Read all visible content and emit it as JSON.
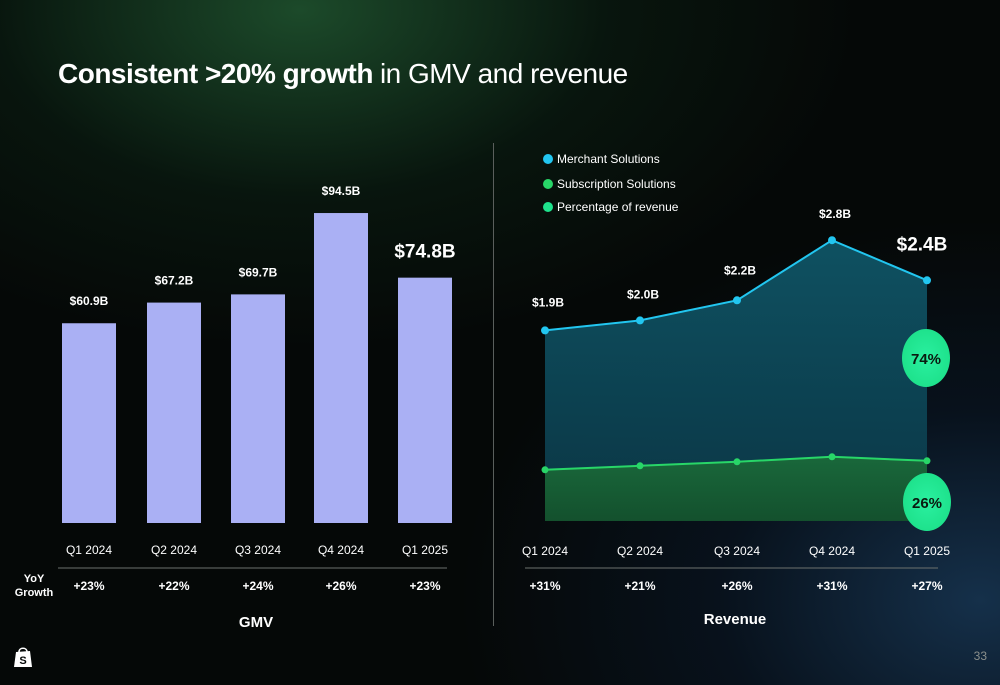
{
  "slide": {
    "title_bold": "Consistent >20% growth",
    "title_rest": "in GMV and revenue",
    "page_number": "33",
    "yoy_label_line1": "YoY",
    "yoy_label_line2": "Growth",
    "colors": {
      "gmv_bar": "#aab0f4",
      "merchant_line": "#22c6f0",
      "subscription_line": "#28d668",
      "merchant_area": "#0f5566",
      "subscription_area": "#1a6a3a",
      "pct_badge": "#1ee28c"
    },
    "logo_icon": "shopify-bag-icon"
  },
  "chart_data": [
    {
      "type": "bar",
      "xlabel": "GMV",
      "categories": [
        "Q1 2024",
        "Q2 2024",
        "Q3 2024",
        "Q4 2024",
        "Q1 2025"
      ],
      "values": [
        60.9,
        67.2,
        69.7,
        94.5,
        74.8
      ],
      "value_labels": [
        "$60.9B",
        "$67.2B",
        "$69.7B",
        "$94.5B",
        "$74.8B"
      ],
      "yoy_growth": [
        "+23%",
        "+22%",
        "+24%",
        "+26%",
        "+23%"
      ],
      "ylim": [
        0,
        100
      ],
      "grid": false,
      "legend": "none"
    },
    {
      "type": "area",
      "xlabel": "Revenue",
      "categories": [
        "Q1 2024",
        "Q2 2024",
        "Q3 2024",
        "Q4 2024",
        "Q1 2025"
      ],
      "series": [
        {
          "name": "Merchant Solutions",
          "values": [
            1.9,
            2.0,
            2.2,
            2.8,
            2.4
          ],
          "value_labels": [
            "$1.9B",
            "$2.0B",
            "$2.2B",
            "$2.8B",
            "$2.4B"
          ]
        },
        {
          "name": "Subscription Solutions",
          "values": [
            0.51,
            0.55,
            0.59,
            0.64,
            0.6
          ]
        }
      ],
      "legend_entries": [
        "Merchant Solutions",
        "Subscription Solutions",
        "Percentage of revenue"
      ],
      "legend_placement": "top-left",
      "percentage_labels": [
        "74%",
        "26%"
      ],
      "yoy_growth": [
        "+31%",
        "+21%",
        "+26%",
        "+31%",
        "+27%"
      ],
      "ylim": [
        0,
        3.3
      ],
      "grid": false
    }
  ]
}
